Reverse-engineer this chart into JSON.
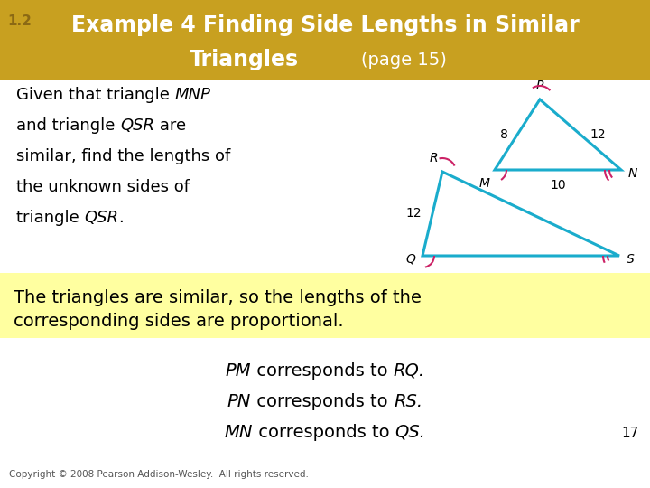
{
  "title_bg": "#C8A020",
  "title_color": "#FFFFFF",
  "title_12_color": "#8B6914",
  "body_bg": "#FFFFFF",
  "yellow_bg": "#FFFFA0",
  "triangle_color": "#1AACCC",
  "angle_color": "#CC2266",
  "given_text_parts": [
    [
      "Given that triangle ",
      false
    ],
    [
      "MNP",
      true
    ],
    [
      "\nand triangle ",
      false
    ],
    [
      "QSR",
      true
    ],
    [
      " are\nsimilar, find the lengths of\nthe unknown sides of\ntriangle ",
      false
    ],
    [
      "QSR",
      true
    ],
    [
      ".",
      false
    ]
  ],
  "yellow_text": "The triangles are similar, so the lengths of the\ncorresponding sides are proportional.",
  "line1_italic1": "PM",
  "line1_mid": " corresponds to ",
  "line1_italic2": "RQ",
  "line2_italic1": "PN",
  "line2_mid": " corresponds to ",
  "line2_italic2": "RS",
  "line3_italic1": "MN",
  "line3_mid": " corresponds to ",
  "line3_italic2": "QS",
  "copyright": "Copyright © 2008 Pearson Addison-Wesley.  All rights reserved.",
  "page_num": "17",
  "font_color": "#000000",
  "title_line1": "Example 4 Finding Side Lengths in Similar",
  "title_12": "1.2",
  "title_line2_left": "Triangles",
  "title_line2_right": "(page 15)"
}
